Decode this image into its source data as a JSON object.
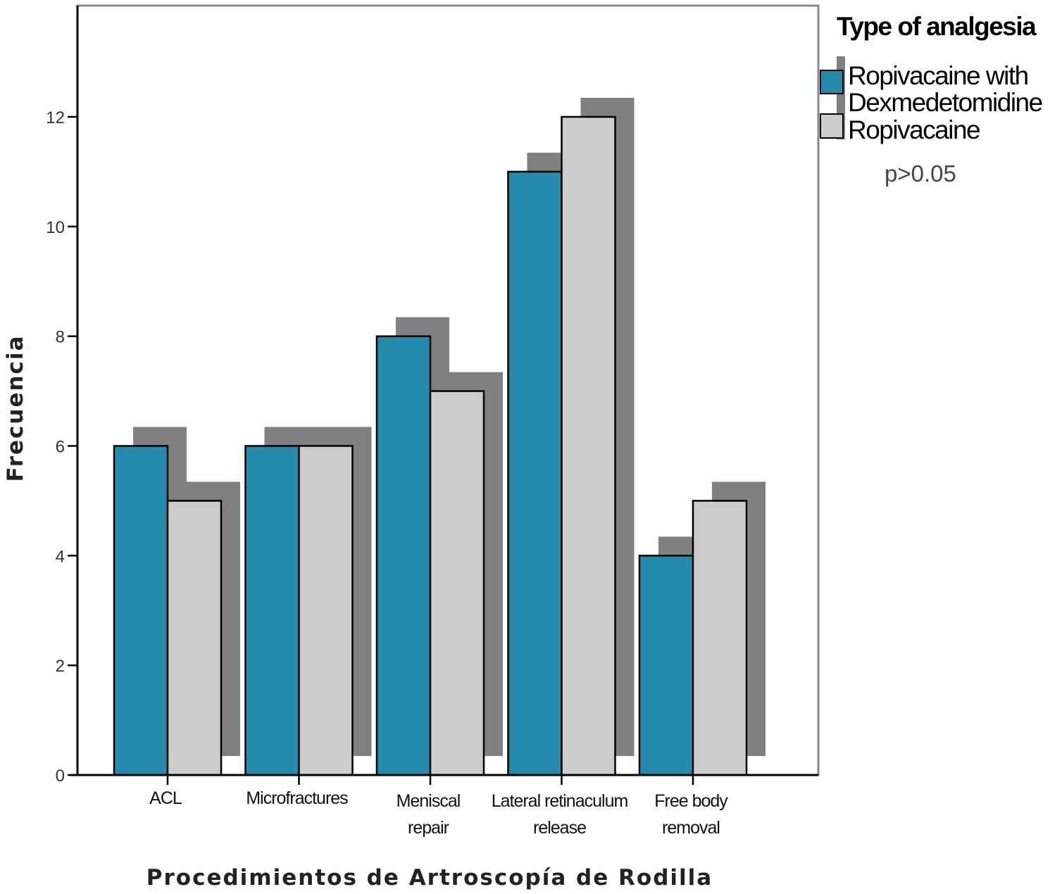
{
  "chart_data": {
    "type": "bar",
    "title": "",
    "xlabel": "Procedimientos de Artroscopía de Rodilla",
    "ylabel": "Frecuencia",
    "ylim": [
      0,
      14
    ],
    "yticks": [
      0,
      2,
      4,
      6,
      8,
      10,
      12
    ],
    "grid": false,
    "categories": [
      [
        "ACL"
      ],
      [
        "Microfractures"
      ],
      [
        "Meniscal",
        "repair"
      ],
      [
        "Lateral retinaculum",
        "release"
      ],
      [
        "Free body",
        "removal"
      ]
    ],
    "series": [
      {
        "name": "Ropivacaine with Dexmedetomidine",
        "name_lines": [
          "Ropivacaine with",
          "Dexmedetomidine"
        ],
        "color": "#248BAD",
        "values": [
          6,
          6,
          8,
          11,
          4
        ]
      },
      {
        "name": "Ropivacaine",
        "name_lines": [
          "Ropivacaine"
        ],
        "color": "#CCCCCC",
        "values": [
          5,
          6,
          7,
          12,
          5
        ]
      }
    ],
    "shadow_color": "#808080",
    "legend": {
      "title": "Type of analgesia",
      "placement": "top-right"
    },
    "annotation": "p>0.05"
  }
}
